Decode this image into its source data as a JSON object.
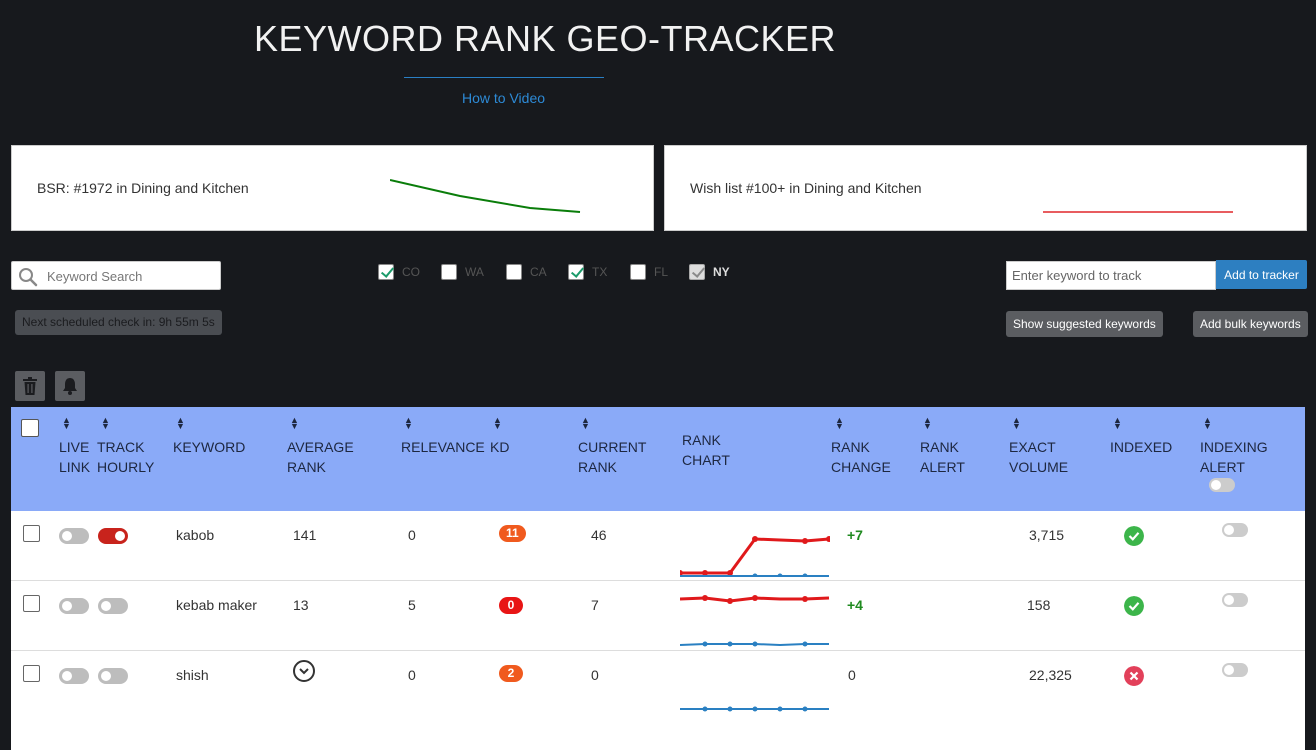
{
  "header": {
    "title": "KEYWORD RANK GEO-TRACKER",
    "how_to_link": "How to Video"
  },
  "bsr_card": {
    "text": "BSR: #1972 in Dining and Kitchen",
    "trend_color": "#0a7d0a"
  },
  "wishlist_card": {
    "text": "Wish list #100+ in Dining and Kitchen",
    "trend_color": "#e0262a"
  },
  "search": {
    "placeholder": "Keyword Search"
  },
  "states": [
    {
      "code": "CO",
      "checked": true
    },
    {
      "code": "WA",
      "checked": false
    },
    {
      "code": "CA",
      "checked": false
    },
    {
      "code": "TX",
      "checked": true
    },
    {
      "code": "FL",
      "checked": false
    },
    {
      "code": "NY",
      "checked": true,
      "disabled": true
    }
  ],
  "tracker": {
    "input_placeholder": "Enter keyword to track",
    "add_label": "Add to tracker",
    "suggest_label": "Show suggested keywords",
    "bulk_label": "Add bulk keywords"
  },
  "schedule": {
    "text": "Next scheduled check in: 9h 55m 5s"
  },
  "icons": {
    "delete": "trash-icon",
    "alert": "bell-icon",
    "search": "search-icon"
  },
  "columns": {
    "live_link": [
      "LIVE",
      "LINK"
    ],
    "track_hourly": [
      "TRACK",
      "HOURLY"
    ],
    "keyword": "KEYWORD",
    "average_rank": [
      "AVERAGE",
      "RANK"
    ],
    "relevance": "RELEVANCE",
    "kd": "KD",
    "current_rank": [
      "CURRENT",
      "RANK"
    ],
    "rank_chart": [
      "RANK",
      "CHART"
    ],
    "rank_change": [
      "RANK",
      "CHANGE"
    ],
    "rank_alert": [
      "RANK",
      "ALERT"
    ],
    "exact_volume": [
      "EXACT",
      "VOLUME"
    ],
    "indexed": "INDEXED",
    "indexing_alert": [
      "INDEXING",
      "ALERT"
    ]
  },
  "rows": [
    {
      "keyword": "kabob",
      "live_link": false,
      "track_hourly": true,
      "average_rank": "141",
      "relevance": "0",
      "kd": "11",
      "kd_color": "#f05a1e",
      "current_rank": "46",
      "rank_change": "+7",
      "exact_volume": "3,715",
      "indexed": true,
      "indexing_alert": false
    },
    {
      "keyword": "kebab maker",
      "live_link": false,
      "track_hourly": false,
      "average_rank": "13",
      "relevance": "5",
      "kd": "0",
      "kd_color": "#e81515",
      "current_rank": "7",
      "rank_change": "+4",
      "exact_volume": "158",
      "indexed": true,
      "indexing_alert": false
    },
    {
      "keyword": "shish",
      "live_link": false,
      "track_hourly": false,
      "average_rank_icon": "clock-icon",
      "relevance": "0",
      "kd": "2",
      "kd_color": "#f05a1e",
      "current_rank": "0",
      "rank_change": "0",
      "exact_volume": "22,325",
      "indexed": false,
      "indexing_alert": false
    }
  ],
  "colors": {
    "header_bg": "#8aaaf8",
    "page_bg": "#17191d",
    "accent_blue": "#2d7fc1",
    "indexed_green": "#3cb54a",
    "not_indexed_red": "#e2405a"
  }
}
